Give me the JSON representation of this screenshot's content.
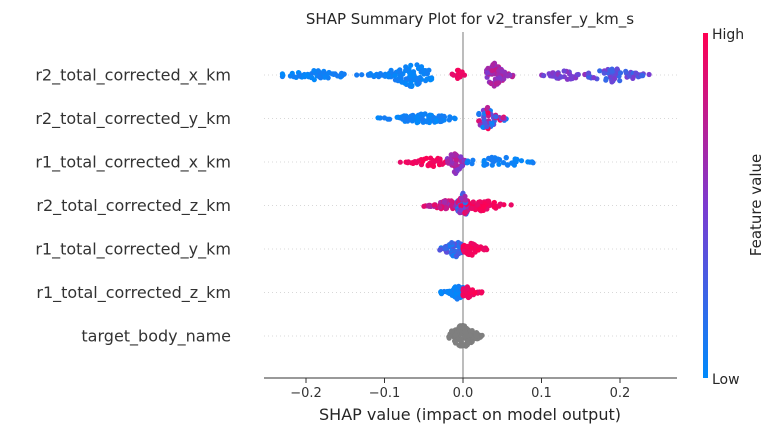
{
  "colors": {
    "low": "#008afb",
    "mid": "#7c3bd0",
    "high": "#ff0052",
    "neutral": "#7f7f7f",
    "zero_line": "#999999",
    "grid": "#cccccc"
  },
  "chart_data": {
    "type": "scatter",
    "subtype": "shap-beeswarm",
    "title": "SHAP Summary Plot for v2_transfer_y_km_s",
    "xlabel": "SHAP value (impact on model output)",
    "xlim": [
      -0.25,
      0.27
    ],
    "xticks": [
      -0.2,
      -0.1,
      0.0,
      0.1,
      0.2
    ],
    "xtick_labels": [
      "−0.2",
      "−0.1",
      "0.0",
      "0.1",
      "0.2"
    ],
    "zero_line": 0.0,
    "row_gridlines": "dotted",
    "colorbar": {
      "label": "Feature value",
      "high_label": "High",
      "low_label": "Low",
      "colormap": [
        "#008afb",
        "#7c3bd0",
        "#ff0052"
      ]
    },
    "features": [
      {
        "name": "r2_total_corrected_x_km",
        "clusters": [
          {
            "min": -0.23,
            "max": -0.12,
            "center": -0.18,
            "peak": -0.19,
            "color": "low",
            "n": 55,
            "spread": 5
          },
          {
            "min": -0.12,
            "max": -0.04,
            "center": -0.07,
            "peak": -0.065,
            "color": "low",
            "n": 90,
            "spread": 12
          },
          {
            "min": -0.015,
            "max": 0.003,
            "center": -0.005,
            "peak": -0.005,
            "color": "high",
            "n": 14,
            "spread": 6
          },
          {
            "min": 0.03,
            "max": 0.065,
            "center": 0.045,
            "peak": 0.04,
            "color": "mid-high",
            "n": 75,
            "spread": 12
          },
          {
            "min": 0.1,
            "max": 0.16,
            "center": 0.13,
            "peak": 0.13,
            "color": "mid",
            "n": 35,
            "spread": 5
          },
          {
            "min": 0.16,
            "max": 0.245,
            "center": 0.19,
            "peak": 0.19,
            "color": "mid-low",
            "n": 55,
            "spread": 8
          }
        ]
      },
      {
        "name": "r2_total_corrected_y_km",
        "clusters": [
          {
            "min": -0.11,
            "max": -0.01,
            "center": -0.06,
            "peak": -0.05,
            "color": "low",
            "n": 85,
            "spread": 5
          },
          {
            "min": 0.02,
            "max": 0.055,
            "center": 0.03,
            "peak": 0.03,
            "color": "mix",
            "n": 55,
            "spread": 12
          }
        ]
      },
      {
        "name": "r1_total_corrected_x_km",
        "clusters": [
          {
            "min": -0.08,
            "max": -0.02,
            "center": -0.045,
            "peak": -0.04,
            "color": "high",
            "n": 45,
            "spread": 5
          },
          {
            "min": -0.02,
            "max": 0.005,
            "center": -0.01,
            "peak": -0.01,
            "color": "mid-high",
            "n": 55,
            "spread": 12
          },
          {
            "min": 0.005,
            "max": 0.09,
            "center": 0.04,
            "peak": 0.045,
            "color": "low",
            "n": 40,
            "spread": 6
          }
        ]
      },
      {
        "name": "r2_total_corrected_z_km",
        "clusters": [
          {
            "min": -0.05,
            "max": -0.01,
            "center": -0.025,
            "peak": -0.02,
            "color": "high-mid",
            "n": 50,
            "spread": 6
          },
          {
            "min": -0.01,
            "max": 0.01,
            "center": 0.0,
            "peak": 0.0,
            "color": "mix",
            "n": 70,
            "spread": 13
          },
          {
            "min": 0.01,
            "max": 0.065,
            "center": 0.03,
            "peak": 0.025,
            "color": "high",
            "n": 50,
            "spread": 6
          }
        ]
      },
      {
        "name": "r1_total_corrected_y_km",
        "clusters": [
          {
            "min": -0.03,
            "max": 0.0,
            "center": -0.01,
            "peak": -0.01,
            "color": "low-mid",
            "n": 60,
            "spread": 9
          },
          {
            "min": 0.0,
            "max": 0.035,
            "center": 0.012,
            "peak": 0.01,
            "color": "high",
            "n": 55,
            "spread": 7
          }
        ]
      },
      {
        "name": "r1_total_corrected_z_km",
        "clusters": [
          {
            "min": -0.03,
            "max": 0.0,
            "center": -0.01,
            "peak": -0.005,
            "color": "low",
            "n": 60,
            "spread": 8
          },
          {
            "min": 0.0,
            "max": 0.025,
            "center": 0.008,
            "peak": 0.005,
            "color": "high",
            "n": 45,
            "spread": 6
          }
        ]
      },
      {
        "name": "target_body_name",
        "clusters": [
          {
            "min": -0.02,
            "max": 0.025,
            "center": 0.0,
            "peak": 0.0,
            "color": "neutral",
            "n": 110,
            "spread": 12
          }
        ]
      }
    ]
  }
}
